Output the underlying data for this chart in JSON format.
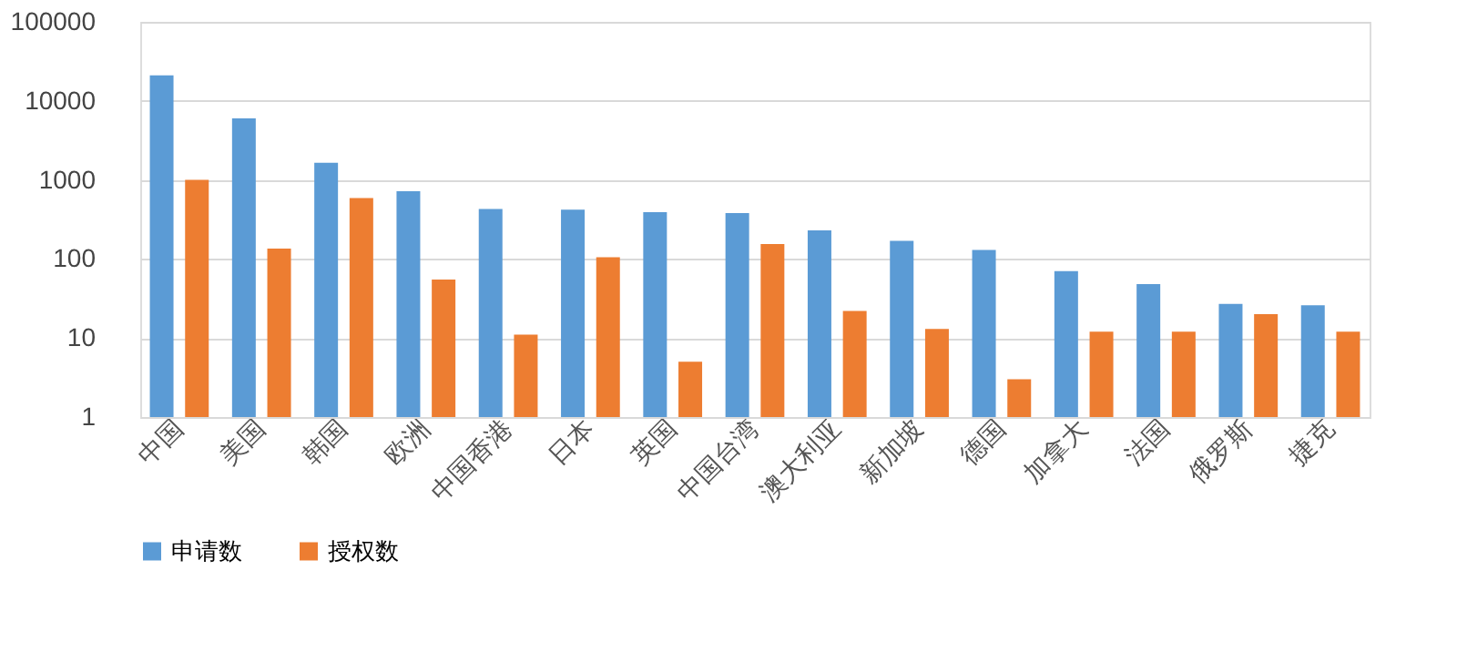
{
  "chart_data": {
    "type": "bar",
    "categories": [
      "中国",
      "美国",
      "韩国",
      "欧洲",
      "中国香港",
      "日本",
      "英国",
      "中国台湾",
      "澳大利亚",
      "新加坡",
      "德国",
      "加拿大",
      "法国",
      "俄罗斯",
      "捷克"
    ],
    "series": [
      {
        "name": "申请数",
        "color": "#5b9bd5",
        "values": [
          21000,
          6000,
          1650,
          720,
          430,
          420,
          390,
          380,
          230,
          170,
          130,
          70,
          48,
          27,
          26
        ]
      },
      {
        "name": "授权数",
        "color": "#ed7d31",
        "values": [
          1000,
          135,
          590,
          55,
          11,
          105,
          5,
          155,
          22,
          13,
          3,
          12,
          12,
          20,
          12
        ]
      }
    ],
    "log": true,
    "ylim": [
      1,
      100000
    ],
    "yticks": [
      1,
      10,
      100,
      1000,
      10000,
      100000
    ],
    "grid": "y",
    "legend": "bottom"
  }
}
